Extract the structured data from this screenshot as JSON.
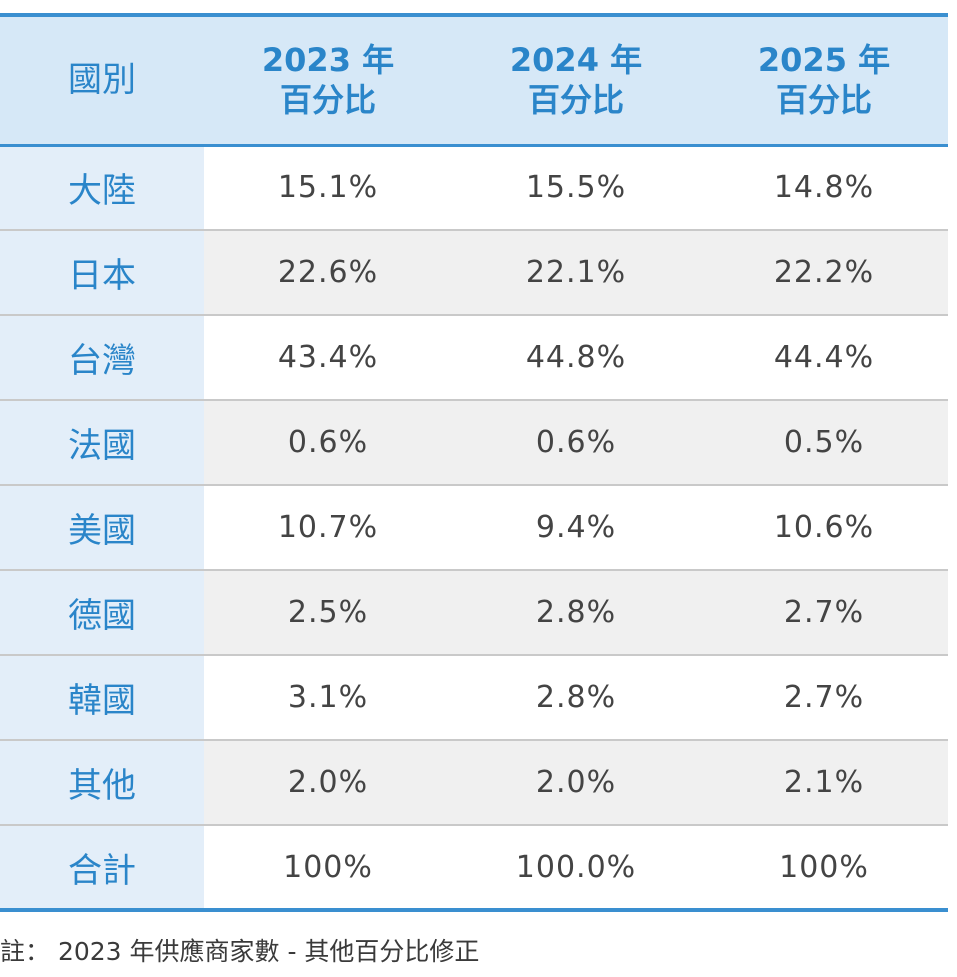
{
  "table": {
    "headers": [
      {
        "lines": [
          "國別"
        ]
      },
      {
        "lines": [
          "2023 年",
          "百分比"
        ]
      },
      {
        "lines": [
          "2024 年",
          "百分比"
        ]
      },
      {
        "lines": [
          "2025 年",
          "百分比"
        ]
      }
    ],
    "rows": [
      {
        "country": "大陸",
        "values": [
          "15.1%",
          "15.5%",
          "14.8%"
        ]
      },
      {
        "country": "日本",
        "values": [
          "22.6%",
          "22.1%",
          "22.2%"
        ]
      },
      {
        "country": "台灣",
        "values": [
          "43.4%",
          "44.8%",
          "44.4%"
        ]
      },
      {
        "country": "法國",
        "values": [
          "0.6%",
          "0.6%",
          "0.5%"
        ]
      },
      {
        "country": "美國",
        "values": [
          "10.7%",
          "9.4%",
          "10.6%"
        ]
      },
      {
        "country": "德國",
        "values": [
          "2.5%",
          "2.8%",
          "2.7%"
        ]
      },
      {
        "country": "韓國",
        "values": [
          "3.1%",
          "2.8%",
          "2.7%"
        ]
      },
      {
        "country": "其他",
        "values": [
          "2.0%",
          "2.0%",
          "2.1%"
        ]
      },
      {
        "country": "合計",
        "values": [
          "100%",
          "100.0%",
          "100%"
        ]
      }
    ]
  },
  "note": "註： 2023 年供應商家數 - 其他百分比修正",
  "colors": {
    "accent": "#3a8fd0",
    "header_bg": "#d6e8f7",
    "country_col_bg": "#e3eef9",
    "stripe_bg": "#f0f0f0",
    "header_text": "#2a85c9"
  }
}
